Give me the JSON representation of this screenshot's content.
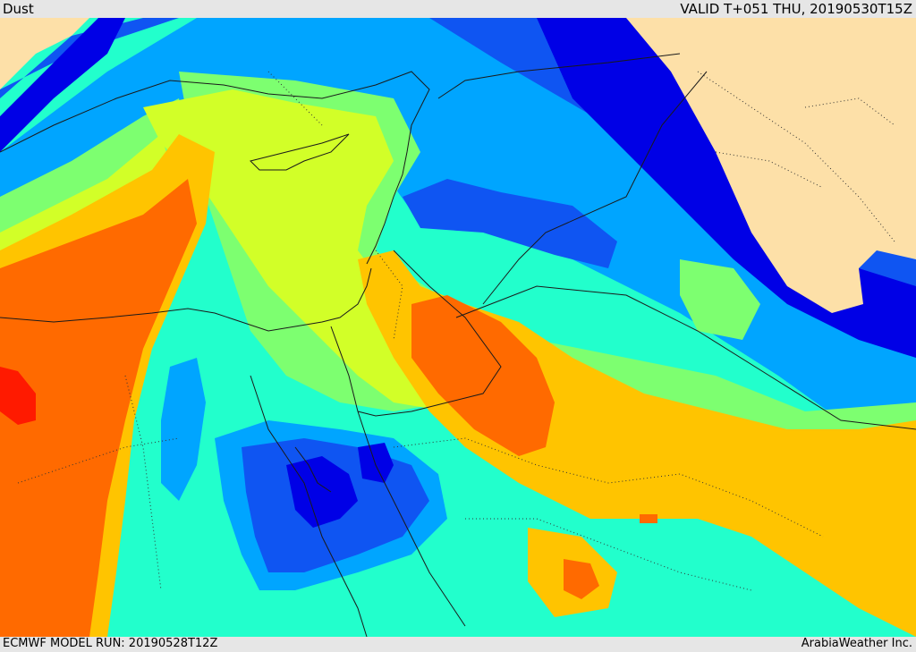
{
  "header": {
    "product": "Dust",
    "valid_time": "VALID T+051 THU, 20190530T15Z"
  },
  "footer": {
    "model_run": "ECMWF MODEL RUN: 20190528T12Z",
    "credit": "ArabiaWeather Inc."
  },
  "colors": {
    "land_no_data": "#fde0a8",
    "navy": "#0000e6",
    "dark_blue": "#0f55f2",
    "blue": "#00a5ff",
    "cyan": "#22ffcc",
    "green": "#7dff70",
    "yellow_green": "#d2ff28",
    "amber": "#ffc400",
    "orange": "#ff6a00",
    "red": "#ff1a00"
  }
}
